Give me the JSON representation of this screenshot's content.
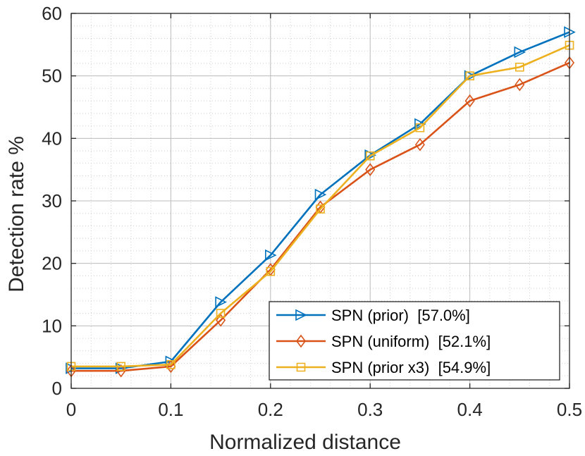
{
  "chart_data": {
    "type": "line",
    "title": "",
    "xlabel": "Normalized distance",
    "ylabel": "Detection rate %",
    "xlim": [
      0,
      0.5
    ],
    "ylim": [
      0,
      60
    ],
    "x_ticks": [
      0,
      0.1,
      0.2,
      0.3,
      0.4,
      0.5
    ],
    "x_tick_labels": [
      "0",
      "0.1",
      "0.2",
      "0.3",
      "0.4",
      "0.5"
    ],
    "y_ticks": [
      0,
      10,
      20,
      30,
      40,
      50,
      60
    ],
    "y_tick_labels": [
      "0",
      "10",
      "20",
      "30",
      "40",
      "50",
      "60"
    ],
    "grid": "major and minor (dotted)",
    "legend_position": "bottom-right",
    "x": [
      0,
      0.05,
      0.1,
      0.15,
      0.2,
      0.25,
      0.3,
      0.35,
      0.4,
      0.45,
      0.5
    ],
    "series": [
      {
        "name": "SPN (prior)  [57.0%]",
        "color": "#0072BD",
        "marker": "triangle-right",
        "values": [
          3.2,
          3.2,
          4.3,
          13.8,
          21.3,
          31.0,
          37.3,
          42.3,
          50.0,
          53.8,
          57.0
        ]
      },
      {
        "name": "SPN (uniform)  [52.1%]",
        "color": "#D95319",
        "marker": "diamond",
        "values": [
          2.8,
          2.8,
          3.5,
          10.9,
          19.0,
          29.0,
          35.0,
          39.0,
          46.0,
          48.6,
          52.1
        ]
      },
      {
        "name": "SPN (prior x3)  [54.9%]",
        "color": "#EDB120",
        "marker": "square",
        "values": [
          3.5,
          3.5,
          3.8,
          12.0,
          18.7,
          28.7,
          37.2,
          41.7,
          50.0,
          51.4,
          54.9
        ]
      }
    ]
  }
}
